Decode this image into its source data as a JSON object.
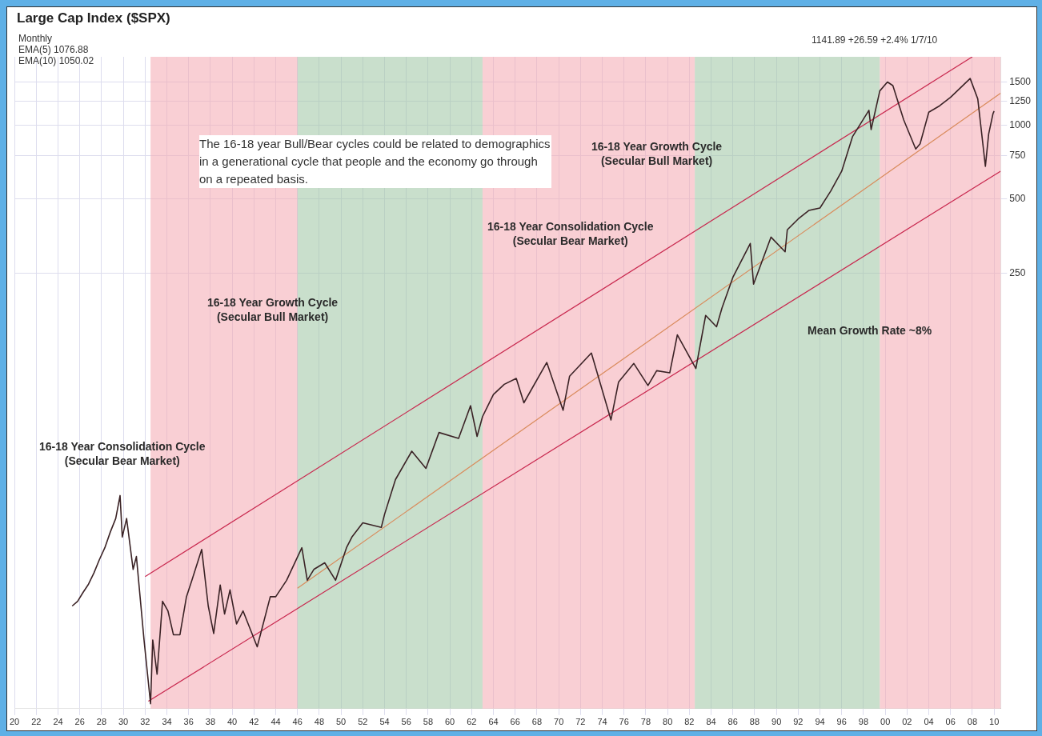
{
  "chart_data": {
    "type": "line",
    "title": "Large Cap Index ($SPX)",
    "log": true,
    "grid": true,
    "legend": false,
    "marker": "none",
    "line_style": "solid",
    "xlim": [
      1920,
      2010.6
    ],
    "xticks": [
      {
        "value": 1920,
        "label": "20"
      },
      {
        "value": 1922,
        "label": "22"
      },
      {
        "value": 1924,
        "label": "24"
      },
      {
        "value": 1926,
        "label": "26"
      },
      {
        "value": 1928,
        "label": "28"
      },
      {
        "value": 1930,
        "label": "30"
      },
      {
        "value": 1932,
        "label": "32"
      },
      {
        "value": 1934,
        "label": "34"
      },
      {
        "value": 1936,
        "label": "36"
      },
      {
        "value": 1938,
        "label": "38"
      },
      {
        "value": 1940,
        "label": "40"
      },
      {
        "value": 1942,
        "label": "42"
      },
      {
        "value": 1944,
        "label": "44"
      },
      {
        "value": 1946,
        "label": "46"
      },
      {
        "value": 1948,
        "label": "48"
      },
      {
        "value": 1950,
        "label": "50"
      },
      {
        "value": 1952,
        "label": "52"
      },
      {
        "value": 1954,
        "label": "54"
      },
      {
        "value": 1956,
        "label": "56"
      },
      {
        "value": 1958,
        "label": "58"
      },
      {
        "value": 1960,
        "label": "60"
      },
      {
        "value": 1962,
        "label": "62"
      },
      {
        "value": 1964,
        "label": "64"
      },
      {
        "value": 1966,
        "label": "66"
      },
      {
        "value": 1968,
        "label": "68"
      },
      {
        "value": 1970,
        "label": "70"
      },
      {
        "value": 1972,
        "label": "72"
      },
      {
        "value": 1974,
        "label": "74"
      },
      {
        "value": 1976,
        "label": "76"
      },
      {
        "value": 1978,
        "label": "78"
      },
      {
        "value": 1980,
        "label": "80"
      },
      {
        "value": 1982,
        "label": "82"
      },
      {
        "value": 1984,
        "label": "84"
      },
      {
        "value": 1986,
        "label": "86"
      },
      {
        "value": 1988,
        "label": "88"
      },
      {
        "value": 1990,
        "label": "90"
      },
      {
        "value": 1992,
        "label": "92"
      },
      {
        "value": 1994,
        "label": "94"
      },
      {
        "value": 1996,
        "label": "96"
      },
      {
        "value": 1998,
        "label": "98"
      },
      {
        "value": 2000,
        "label": "00"
      },
      {
        "value": 2002,
        "label": "02"
      },
      {
        "value": 2004,
        "label": "04"
      },
      {
        "value": 2006,
        "label": "06"
      },
      {
        "value": 2008,
        "label": "08"
      },
      {
        "value": 2010,
        "label": "10"
      }
    ],
    "ylim": [
      4.2,
      1900
    ],
    "yticks": [
      250,
      500,
      750,
      1000,
      1250,
      1500
    ],
    "series": [
      {
        "color": "#3b2326",
        "x": [
          1925.3,
          1925.8,
          1926.3,
          1926.8,
          1927.3,
          1927.8,
          1928.3,
          1928.8,
          1929.3,
          1929.7,
          1929.9,
          1930.3,
          1930.9,
          1931.2,
          1931.9,
          1932.5,
          1932.7,
          1933.1,
          1933.6,
          1934.1,
          1934.6,
          1935.2,
          1935.8,
          1936.3,
          1937.2,
          1937.8,
          1938.3,
          1938.9,
          1939.3,
          1939.8,
          1940.4,
          1941,
          1942.3,
          1943.5,
          1944,
          1945,
          1946.4,
          1946.9,
          1947.5,
          1948.5,
          1949.5,
          1950.5,
          1951,
          1952,
          1953.7,
          1954,
          1955,
          1956.5,
          1957.8,
          1959,
          1960.8,
          1961.9,
          1962.5,
          1963,
          1964,
          1965,
          1966.1,
          1966.8,
          1968.9,
          1970.4,
          1971,
          1973,
          1974.8,
          1975.5,
          1976.9,
          1978.2,
          1979,
          1980.2,
          1980.9,
          1982.6,
          1983.5,
          1984.5,
          1985,
          1986,
          1987.6,
          1987.9,
          1989.5,
          1990.8,
          1991,
          1992,
          1993,
          1994,
          1995,
          1996,
          1997,
          1998.5,
          1998.7,
          1999.5,
          2000.2,
          2000.7,
          2001.7,
          2002.8,
          2003.2,
          2004,
          2005,
          2006,
          2007.8,
          2008.5,
          2009.2,
          2009.5,
          2009.9,
          2010
        ],
        "values": [
          11,
          11.5,
          12.5,
          13.5,
          15,
          17,
          19,
          22,
          25,
          31,
          21,
          25,
          15.5,
          17.5,
          8,
          4.4,
          8,
          5.8,
          11.5,
          10.5,
          8.4,
          8.4,
          12,
          14,
          18.7,
          11,
          8.5,
          13.4,
          10.2,
          12.8,
          9.3,
          10.5,
          7.5,
          12,
          12,
          14,
          19,
          14,
          15.5,
          16.5,
          14,
          19,
          21,
          24,
          23,
          26,
          36,
          47,
          40,
          56,
          53,
          72,
          54,
          65,
          80,
          88,
          93,
          74,
          108,
          69,
          95,
          118,
          63,
          90,
          107,
          87,
          100,
          98,
          140,
          102,
          168,
          151,
          180,
          240,
          330,
          225,
          350,
          305,
          375,
          415,
          450,
          460,
          540,
          650,
          900,
          1150,
          960,
          1380,
          1500,
          1450,
          1050,
          800,
          840,
          1130,
          1200,
          1300,
          1550,
          1280,
          680,
          920,
          1115,
          1142
        ]
      },
      {
        "type": "line",
        "color": "#c8264d",
        "x": [
          1932.3,
          2010.6
        ],
        "values": [
          4.5,
          650
        ]
      },
      {
        "type": "line",
        "color": "#c8264d",
        "x": [
          1932,
          2008
        ],
        "values": [
          14.5,
          1900
        ]
      },
      {
        "type": "line",
        "color": "#d98a5a",
        "x": [
          1946,
          2010.6
        ],
        "values": [
          13,
          1350
        ]
      }
    ],
    "bands": [
      {
        "axis": "x",
        "from": 1932.5,
        "to": 1946,
        "color": "#f4a7b0"
      },
      {
        "axis": "x",
        "from": 1946,
        "to": 1963,
        "color": "#9dc4a2"
      },
      {
        "axis": "x",
        "from": 1963,
        "to": 1982.5,
        "color": "#f4a7b0"
      },
      {
        "axis": "x",
        "from": 1982.5,
        "to": 1999.5,
        "color": "#9dc4a2"
      },
      {
        "axis": "x",
        "from": 1999.5,
        "to": 2010.6,
        "color": "#f4a7b0"
      }
    ],
    "annotations": [
      "Monthly",
      "EMA(5) 1076.88",
      "EMA(10) 1050.02",
      "1141.89 +26.59 +2.4% 1/7/10",
      "The 16-18 year Bull/Bear cycles could be related to demographics in a generational cycle that people and the economy go through on a repeated basis.",
      "16-18 Year Consolidation Cycle (Secular Bear Market)",
      "16-18 Year Growth Cycle (Secular Bull Market)",
      "16-18 Year Consolidation Cycle (Secular Bear Market)",
      "16-18 Year Growth Cycle (Secular Bull Market)",
      "Mean Growth Rate ~8%"
    ]
  }
}
